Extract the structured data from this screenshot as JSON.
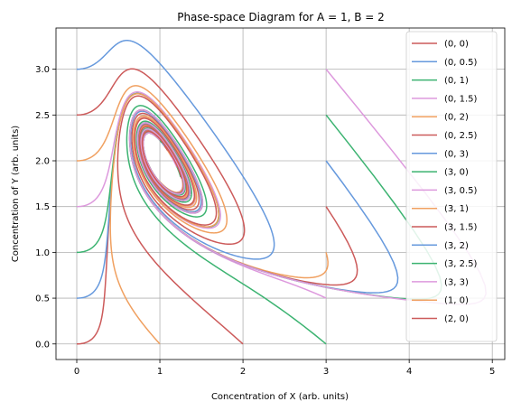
{
  "chart_data": {
    "type": "line",
    "title": "Phase-space Diagram for A = 1, B = 2",
    "xlabel": "Concentration of X (arb. units)",
    "ylabel": "Concentration of Y (arb. units)",
    "xlim": [
      -0.25,
      5.15
    ],
    "ylim": [
      -0.17,
      3.45
    ],
    "xticks": [
      0,
      1,
      2,
      3,
      4,
      5
    ],
    "xtick_labels": [
      "0",
      "1",
      "2",
      "3",
      "4",
      "5"
    ],
    "yticks": [
      0.0,
      0.5,
      1.0,
      1.5,
      2.0,
      2.5,
      3.0
    ],
    "ytick_labels": [
      "0.0",
      "0.5",
      "1.0",
      "1.5",
      "2.0",
      "2.5",
      "3.0"
    ],
    "grid": true,
    "legend_position": "top-right",
    "model": {
      "A": 1,
      "B": 2
    },
    "series": [
      {
        "name": "(0, 0)",
        "x0": 0,
        "y0": 0,
        "color": "#cc5a5a"
      },
      {
        "name": "(0, 0.5)",
        "x0": 0,
        "y0": 0.5,
        "color": "#6699dd"
      },
      {
        "name": "(0, 1)",
        "x0": 0,
        "y0": 1,
        "color": "#3cb371"
      },
      {
        "name": "(0, 1.5)",
        "x0": 0,
        "y0": 1.5,
        "color": "#dd99dd"
      },
      {
        "name": "(0, 2)",
        "x0": 0,
        "y0": 2,
        "color": "#f0a060"
      },
      {
        "name": "(0, 2.5)",
        "x0": 0,
        "y0": 2.5,
        "color": "#cc5a5a"
      },
      {
        "name": "(0, 3)",
        "x0": 0,
        "y0": 3,
        "color": "#6699dd"
      },
      {
        "name": "(3, 0)",
        "x0": 3,
        "y0": 0,
        "color": "#3cb371"
      },
      {
        "name": "(3, 0.5)",
        "x0": 3,
        "y0": 0.5,
        "color": "#dd99dd"
      },
      {
        "name": "(3, 1)",
        "x0": 3,
        "y0": 1,
        "color": "#f0a060"
      },
      {
        "name": "(3, 1.5)",
        "x0": 3,
        "y0": 1.5,
        "color": "#cc5a5a"
      },
      {
        "name": "(3, 2)",
        "x0": 3,
        "y0": 2,
        "color": "#6699dd"
      },
      {
        "name": "(3, 2.5)",
        "x0": 3,
        "y0": 2.5,
        "color": "#3cb371"
      },
      {
        "name": "(3, 3)",
        "x0": 3,
        "y0": 3,
        "color": "#dd99dd"
      },
      {
        "name": "(1, 0)",
        "x0": 1,
        "y0": 0,
        "color": "#f0a060"
      },
      {
        "name": "(2, 0)",
        "x0": 2,
        "y0": 0,
        "color": "#cc5a5a"
      }
    ]
  }
}
